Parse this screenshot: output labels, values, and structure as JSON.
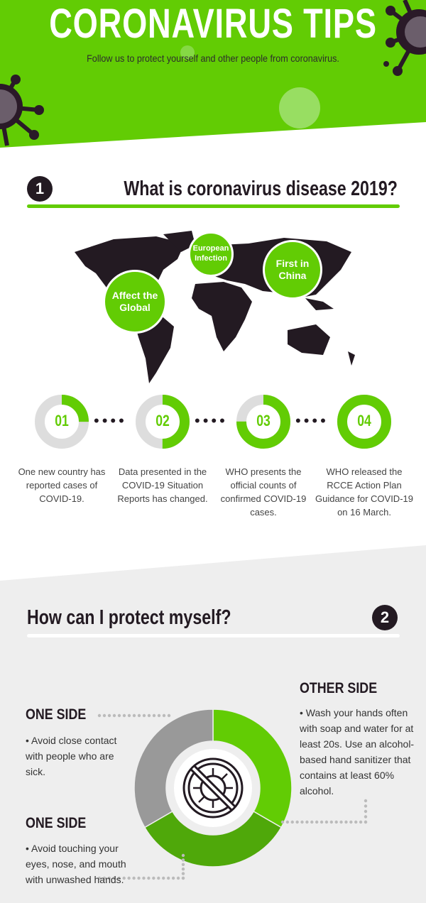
{
  "header": {
    "title": "CORONAVIRUS TIPS",
    "subtitle": "Follow us to protect yourself and other people from coronavirus."
  },
  "section1": {
    "number": "1",
    "title": "What is coronavirus disease 2019?",
    "map_labels": [
      "Affect the Global",
      "European Infection",
      "First in China"
    ],
    "steps": [
      {
        "label": "01",
        "progress": 0.25,
        "text": "One new country has reported cases of COVID-19."
      },
      {
        "label": "02",
        "progress": 0.5,
        "text": "Data presented in the COVID-19 Situation Reports has changed."
      },
      {
        "label": "03",
        "progress": 0.75,
        "text": "WHO presents the official counts of confirmed COVID-19 cases."
      },
      {
        "label": "04",
        "progress": 1.0,
        "text": "WHO released the RCCE Action Plan Guidance for COVID-19 on 16 March."
      }
    ]
  },
  "section2": {
    "number": "2",
    "title": "How can I protect myself?",
    "tips": [
      {
        "heading": "ONE SIDE",
        "text": "• Avoid close contact with people who are sick."
      },
      {
        "heading": "ONE SIDE",
        "text": "• Avoid touching your eyes, nose, and mouth with unwashed hands."
      },
      {
        "heading": "OTHER SIDE",
        "text": "• Wash your hands often with soap and water for at least 20s. Use an alcohol-based hand sanitizer that contains at least 60% alcohol."
      }
    ],
    "center_icon": "no-virus-icon"
  },
  "colors": {
    "green": "#62cc04",
    "dark_green": "#4fa80a",
    "gray": "#999999",
    "light_gray": "#dddddd",
    "dark": "#231a22",
    "section_bg": "#eeeeee"
  }
}
